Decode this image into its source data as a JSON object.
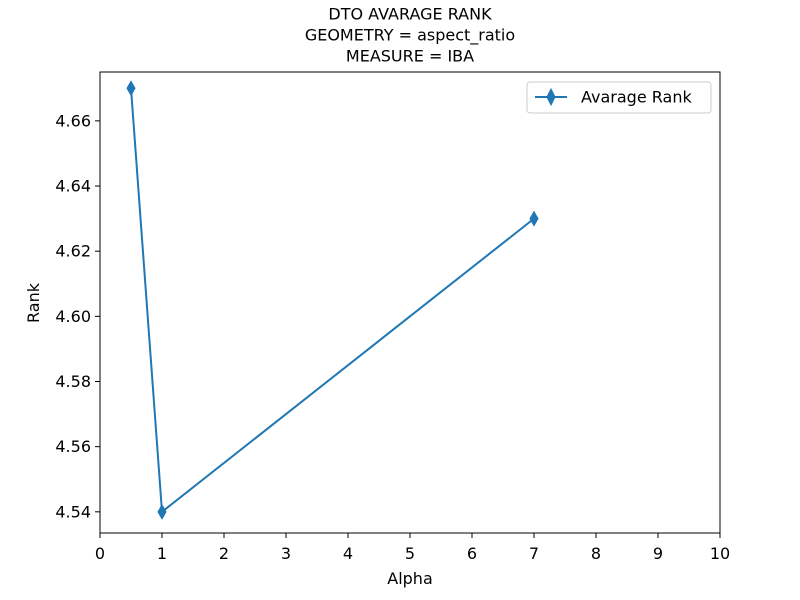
{
  "chart_data": {
    "type": "line",
    "title_lines": [
      "DTO AVARAGE RANK",
      "GEOMETRY = aspect_ratio",
      "MEASURE = IBA"
    ],
    "xlabel": "Alpha",
    "ylabel": "Rank",
    "xlim": [
      0,
      10
    ],
    "ylim": [
      4.5335,
      4.675
    ],
    "xticks": [
      0,
      1,
      2,
      3,
      4,
      5,
      6,
      7,
      8,
      9,
      10
    ],
    "xtick_labels": [
      "0",
      "1",
      "2",
      "3",
      "4",
      "5",
      "6",
      "7",
      "8",
      "9",
      "10"
    ],
    "yticks": [
      4.54,
      4.56,
      4.58,
      4.6,
      4.62,
      4.64,
      4.66
    ],
    "ytick_labels": [
      "4.54",
      "4.56",
      "4.58",
      "4.60",
      "4.62",
      "4.64",
      "4.66"
    ],
    "grid": false,
    "legend_position": "top-right",
    "series": [
      {
        "name": "Avarage Rank",
        "color": "#1f77b4",
        "marker": "thin-diamond",
        "x": [
          0.5,
          1,
          7
        ],
        "y": [
          4.67,
          4.54,
          4.63
        ]
      }
    ]
  }
}
